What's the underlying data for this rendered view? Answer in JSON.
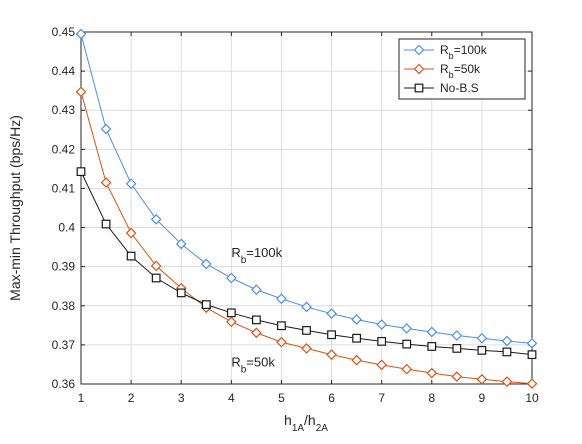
{
  "chart_data": {
    "type": "line",
    "xlabel": {
      "main": "h",
      "sub1": "1A",
      "slash": "/h",
      "sub2": "2A"
    },
    "ylabel": "Max-min Throughput (bps/Hz)",
    "xlim": [
      1,
      10
    ],
    "ylim": [
      0.36,
      0.45
    ],
    "xticks": [
      "1",
      "2",
      "3",
      "4",
      "5",
      "6",
      "7",
      "8",
      "9",
      "10"
    ],
    "yticks": [
      "0.36",
      "0.37",
      "0.38",
      "0.39",
      "0.4",
      "0.41",
      "0.42",
      "0.43",
      "0.44",
      "0.45"
    ],
    "grid": true,
    "legend_position": "top-right",
    "x": [
      1,
      1.5,
      2,
      2.5,
      3,
      3.5,
      4,
      4.5,
      5,
      5.5,
      6,
      6.5,
      7,
      7.5,
      8,
      8.5,
      9,
      9.5,
      10
    ],
    "series": [
      {
        "name": "R_b=100k",
        "legend_main": "R",
        "legend_sub": "b",
        "legend_rest": "=100k",
        "marker": "diamond",
        "color": "#4d8fe6",
        "values": [
          0.4495,
          0.4252,
          0.4112,
          0.4021,
          0.3958,
          0.3907,
          0.3871,
          0.3841,
          0.3818,
          0.3797,
          0.378,
          0.3765,
          0.3752,
          0.3742,
          0.3733,
          0.3724,
          0.3717,
          0.371,
          0.3704
        ]
      },
      {
        "name": "R_b=50k",
        "legend_main": "R",
        "legend_sub": "b",
        "legend_rest": "=50k",
        "marker": "diamond",
        "color": "#d95319",
        "values": [
          0.4347,
          0.4115,
          0.3986,
          0.3902,
          0.3845,
          0.3795,
          0.3759,
          0.3731,
          0.3707,
          0.3691,
          0.3675,
          0.3661,
          0.3649,
          0.3638,
          0.3628,
          0.3619,
          0.3612,
          0.3606,
          0.3601
        ]
      },
      {
        "name": "No-B.S",
        "legend_main": "No-B.S",
        "legend_sub": "",
        "legend_rest": "",
        "marker": "square",
        "color": "#1a1a1a",
        "values": [
          0.4143,
          0.4009,
          0.3927,
          0.3871,
          0.3833,
          0.3803,
          0.3782,
          0.3764,
          0.3749,
          0.3737,
          0.3726,
          0.3717,
          0.3709,
          0.3702,
          0.3696,
          0.3691,
          0.3686,
          0.3682,
          0.3675
        ]
      }
    ],
    "annotations": [
      {
        "main": "R",
        "sub": "b",
        "rest": "=100k",
        "x": 4.0,
        "y": 0.3925
      },
      {
        "main": "R",
        "sub": "b",
        "rest": "=50k",
        "x": 4.0,
        "y": 0.3645
      }
    ]
  }
}
